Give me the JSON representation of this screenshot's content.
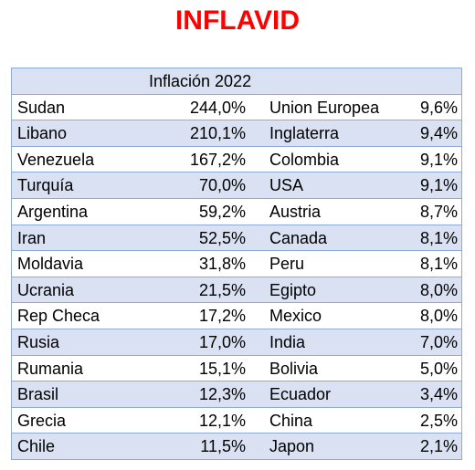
{
  "title": "INFLAVID",
  "table": {
    "header": "Inflación 2022",
    "rows": [
      {
        "country_left": "Sudan",
        "value_left": "244,0%",
        "country_right": "Union Europea",
        "value_right": "9,6%"
      },
      {
        "country_left": "Libano",
        "value_left": "210,1%",
        "country_right": "Inglaterra",
        "value_right": "9,4%"
      },
      {
        "country_left": "Venezuela",
        "value_left": "167,2%",
        "country_right": "Colombia",
        "value_right": "9,1%"
      },
      {
        "country_left": "Turquía",
        "value_left": "70,0%",
        "country_right": "USA",
        "value_right": "9,1%"
      },
      {
        "country_left": "Argentina",
        "value_left": "59,2%",
        "country_right": "Austria",
        "value_right": "8,7%"
      },
      {
        "country_left": "Iran",
        "value_left": "52,5%",
        "country_right": "Canada",
        "value_right": "8,1%"
      },
      {
        "country_left": "Moldavia",
        "value_left": "31,8%",
        "country_right": "Peru",
        "value_right": "8,1%"
      },
      {
        "country_left": "Ucrania",
        "value_left": "21,5%",
        "country_right": "Egipto",
        "value_right": "8,0%"
      },
      {
        "country_left": "Rep Checa",
        "value_left": "17,2%",
        "country_right": "Mexico",
        "value_right": "8,0%"
      },
      {
        "country_left": "Rusia",
        "value_left": "17,0%",
        "country_right": "India",
        "value_right": "7,0%"
      },
      {
        "country_left": "Rumania",
        "value_left": "15,1%",
        "country_right": "Bolivia",
        "value_right": "5,0%"
      },
      {
        "country_left": "Brasil",
        "value_left": "12,3%",
        "country_right": "Ecuador",
        "value_right": "3,4%"
      },
      {
        "country_left": "Grecia",
        "value_left": "12,1%",
        "country_right": "China",
        "value_right": "2,5%"
      },
      {
        "country_left": "Chile",
        "value_left": "11,5%",
        "country_right": "Japon",
        "value_right": "2,1%"
      }
    ]
  },
  "colors": {
    "title": "#ff0000",
    "shaded_row": "#d9e1f2",
    "border": "#8ea9db"
  }
}
